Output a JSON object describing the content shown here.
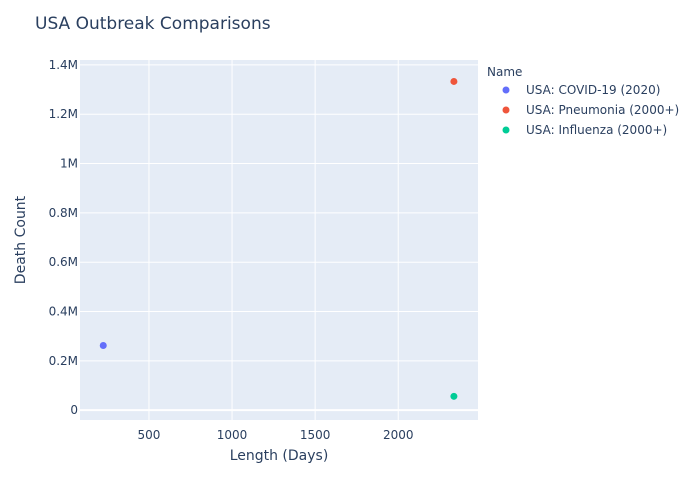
{
  "chart_data": {
    "type": "scatter",
    "title": "USA Outbreak Comparisons",
    "xlabel": "Length (Days)",
    "ylabel": "Death Count",
    "xlim": [
      85,
      2480
    ],
    "ylim": [
      -40000,
      1420000
    ],
    "x_ticks": [
      {
        "value": 500,
        "label": "500"
      },
      {
        "value": 1000,
        "label": "1000"
      },
      {
        "value": 1500,
        "label": "1500"
      },
      {
        "value": 2000,
        "label": "2000"
      }
    ],
    "y_ticks": [
      {
        "value": 0,
        "label": "0"
      },
      {
        "value": 200000,
        "label": "0.2M"
      },
      {
        "value": 400000,
        "label": "0.4M"
      },
      {
        "value": 600000,
        "label": "0.6M"
      },
      {
        "value": 800000,
        "label": "0.8M"
      },
      {
        "value": 1000000,
        "label": "1M"
      },
      {
        "value": 1200000,
        "label": "1.2M"
      },
      {
        "value": 1400000,
        "label": "1.4M"
      }
    ],
    "grid": true,
    "legend_title": "Name",
    "legend_position": "right",
    "series": [
      {
        "name": "USA: COVID-19 (2020)",
        "color": "#636efa",
        "x": [
          225
        ],
        "y": [
          262000
        ]
      },
      {
        "name": "USA: Pneumonia (2000+)",
        "color": "#EF553B",
        "x": [
          2335
        ],
        "y": [
          1333000
        ]
      },
      {
        "name": "USA: Influenza (2000+)",
        "color": "#00cc96",
        "x": [
          2335
        ],
        "y": [
          56000
        ]
      }
    ]
  }
}
